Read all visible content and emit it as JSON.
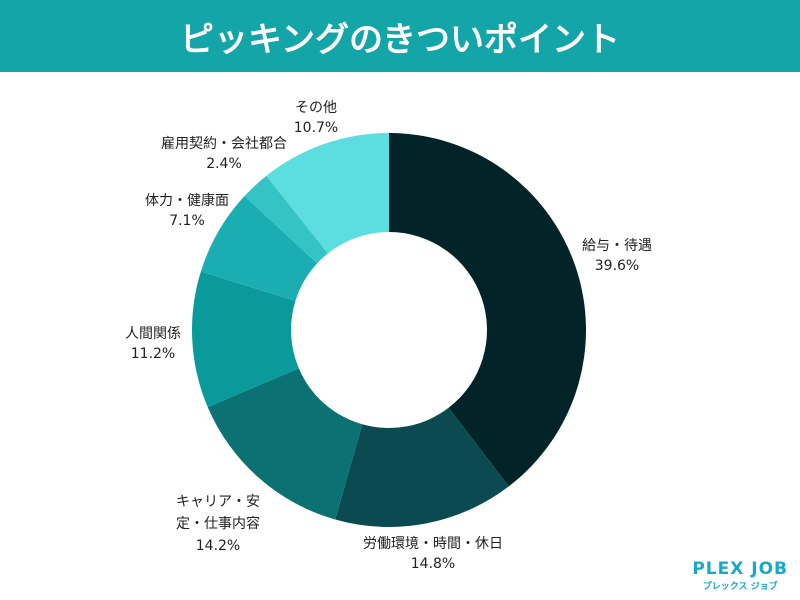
{
  "chart_data": {
    "type": "donut",
    "title": "ピッキングのきついポイント",
    "categories": [
      "給与・待遇",
      "労働環境・時間・休日",
      "キャリア・安定・仕事内容",
      "人間関係",
      "体力・健康面",
      "雇用契約・会社都合",
      "その他"
    ],
    "values": [
      39.6,
      14.8,
      14.2,
      11.2,
      7.1,
      2.4,
      10.7
    ],
    "value_labels": [
      "39.6%",
      "14.8%",
      "14.2%",
      "11.2%",
      "7.1%",
      "2.4%",
      "10.7%"
    ],
    "colors": [
      "#022429",
      "#0a4a50",
      "#0b7173",
      "#0b9a9c",
      "#1aaeb2",
      "#35c4c6",
      "#5cdde0"
    ]
  },
  "logo": {
    "name": "PLEX JOB",
    "subtitle": "プレックス ジョブ"
  }
}
